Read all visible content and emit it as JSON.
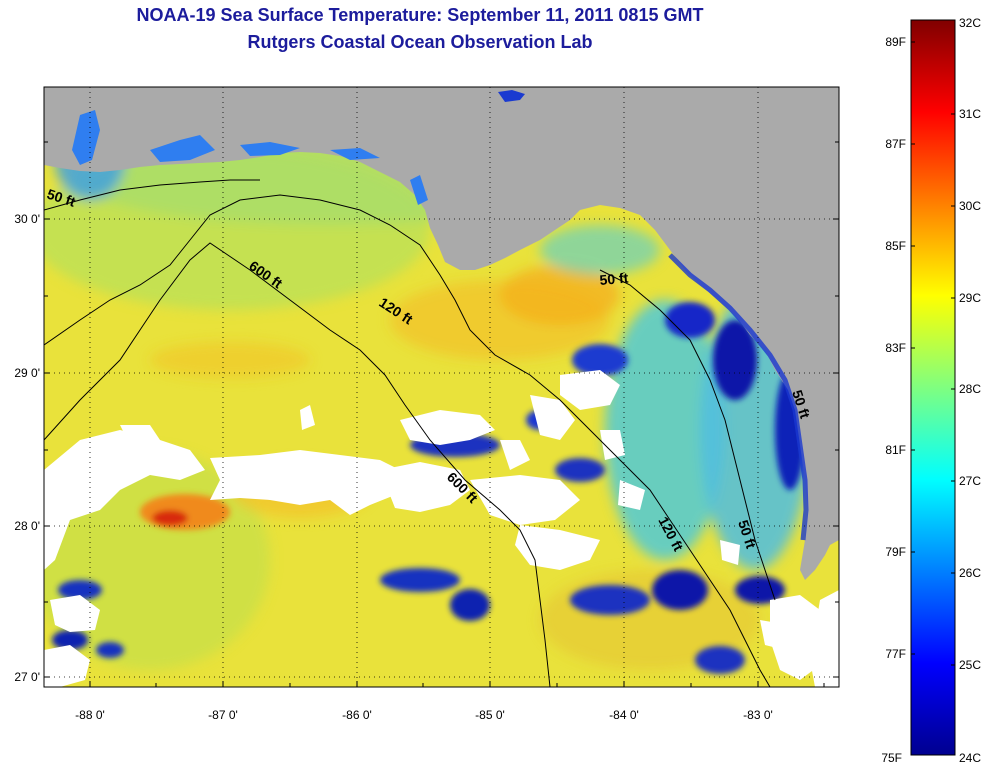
{
  "title_line1": "NOAA-19 Sea Surface Temperature:  September 11, 2011 0815 GMT",
  "title_line2": "Rutgers Coastal Ocean Observation Lab",
  "longitude_labels": [
    "-88 0'",
    "-87 0'",
    "-86 0'",
    "-85 0'",
    "-84 0'",
    "-83 0'"
  ],
  "latitude_labels": [
    "30 0'",
    "29 0'",
    "28 0'",
    "27 0'"
  ],
  "contour_labels": [
    "50 ft",
    "600 ft",
    "120 ft",
    "50 ft",
    "600 ft",
    "120 ft",
    "50 ft",
    "50 ft"
  ],
  "colorbar": {
    "celsius_labels": [
      "32C",
      "31C",
      "30C",
      "29C",
      "28C",
      "27C",
      "26C",
      "25C",
      "24C"
    ],
    "fahrenheit_labels": [
      "89F",
      "87F",
      "85F",
      "83F",
      "81F",
      "79F",
      "77F",
      "75F"
    ],
    "colormap": "jet"
  },
  "colors": {
    "land": "#aaaaaa",
    "cloud": "#ffffff",
    "title": "#1c1c9c"
  }
}
